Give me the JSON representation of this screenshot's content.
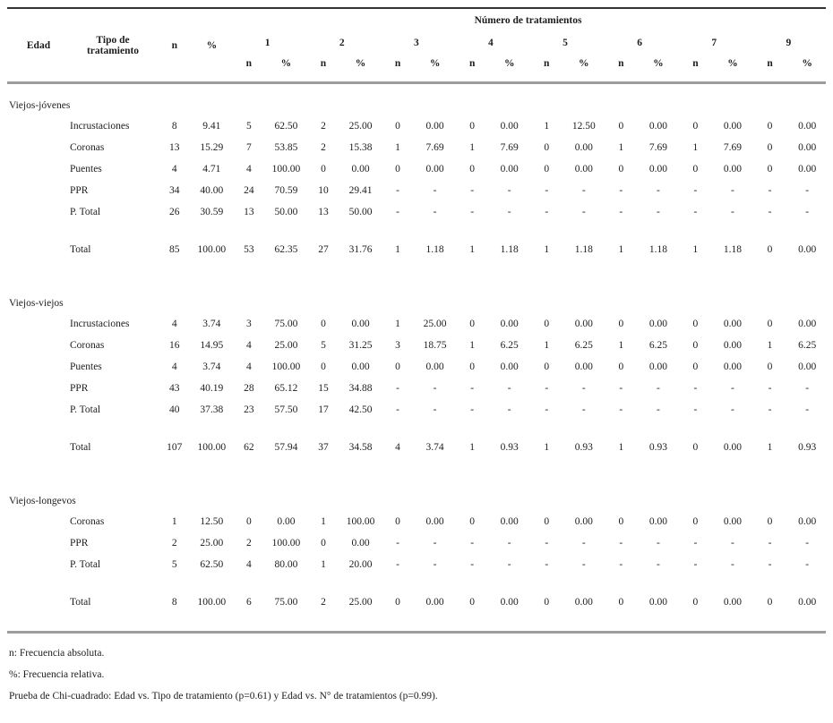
{
  "table": {
    "headers": {
      "edad": "Edad",
      "tipo": "Tipo de tratamiento",
      "n": "n",
      "pct": "%",
      "group": "Número de tratamientos"
    },
    "number_columns": [
      "1",
      "2",
      "3",
      "4",
      "5",
      "6",
      "7",
      "9"
    ],
    "sub_n": "n",
    "sub_pct": "%",
    "sections": [
      {
        "label": "Viejos-jóvenes",
        "rows": [
          {
            "label": "Incrustaciones",
            "values": [
              "8",
              "9.41",
              "5",
              "62.50",
              "2",
              "25.00",
              "0",
              "0.00",
              "0",
              "0.00",
              "1",
              "12.50",
              "0",
              "0.00",
              "0",
              "0.00",
              "0",
              "0.00"
            ]
          },
          {
            "label": "Coronas",
            "values": [
              "13",
              "15.29",
              "7",
              "53.85",
              "2",
              "15.38",
              "1",
              "7.69",
              "1",
              "7.69",
              "0",
              "0.00",
              "1",
              "7.69",
              "1",
              "7.69",
              "0",
              "0.00"
            ]
          },
          {
            "label": "Puentes",
            "values": [
              "4",
              "4.71",
              "4",
              "100.00",
              "0",
              "0.00",
              "0",
              "0.00",
              "0",
              "0.00",
              "0",
              "0.00",
              "0",
              "0.00",
              "0",
              "0.00",
              "0",
              "0.00"
            ]
          },
          {
            "label": "PPR",
            "values": [
              "34",
              "40.00",
              "24",
              "70.59",
              "10",
              "29.41",
              "-",
              "-",
              "-",
              "-",
              "-",
              "-",
              "-",
              "-",
              "-",
              "-",
              "-",
              "-"
            ]
          },
          {
            "label": "P. Total",
            "values": [
              "26",
              "30.59",
              "13",
              "50.00",
              "13",
              "50.00",
              "-",
              "-",
              "-",
              "-",
              "-",
              "-",
              "-",
              "-",
              "-",
              "-",
              "-",
              "-"
            ]
          }
        ],
        "total": {
          "label": "Total",
          "values": [
            "85",
            "100.00",
            "53",
            "62.35",
            "27",
            "31.76",
            "1",
            "1.18",
            "1",
            "1.18",
            "1",
            "1.18",
            "1",
            "1.18",
            "1",
            "1.18",
            "0",
            "0.00"
          ]
        }
      },
      {
        "label": "Viejos-viejos",
        "rows": [
          {
            "label": "Incrustaciones",
            "values": [
              "4",
              "3.74",
              "3",
              "75.00",
              "0",
              "0.00",
              "1",
              "25.00",
              "0",
              "0.00",
              "0",
              "0.00",
              "0",
              "0.00",
              "0",
              "0.00",
              "0",
              "0.00"
            ]
          },
          {
            "label": "Coronas",
            "values": [
              "16",
              "14.95",
              "4",
              "25.00",
              "5",
              "31.25",
              "3",
              "18.75",
              "1",
              "6.25",
              "1",
              "6.25",
              "1",
              "6.25",
              "0",
              "0.00",
              "1",
              "6.25"
            ]
          },
          {
            "label": "Puentes",
            "values": [
              "4",
              "3.74",
              "4",
              "100.00",
              "0",
              "0.00",
              "0",
              "0.00",
              "0",
              "0.00",
              "0",
              "0.00",
              "0",
              "0.00",
              "0",
              "0.00",
              "0",
              "0.00"
            ]
          },
          {
            "label": "PPR",
            "values": [
              "43",
              "40.19",
              "28",
              "65.12",
              "15",
              "34.88",
              "-",
              "-",
              "-",
              "-",
              "-",
              "-",
              "-",
              "-",
              "-",
              "-",
              "-",
              "-"
            ]
          },
          {
            "label": "P. Total",
            "values": [
              "40",
              "37.38",
              "23",
              "57.50",
              "17",
              "42.50",
              "-",
              "-",
              "-",
              "-",
              "-",
              "-",
              "-",
              "-",
              "-",
              "-",
              "-",
              "-"
            ]
          }
        ],
        "total": {
          "label": "Total",
          "values": [
            "107",
            "100.00",
            "62",
            "57.94",
            "37",
            "34.58",
            "4",
            "3.74",
            "1",
            "0.93",
            "1",
            "0.93",
            "1",
            "0.93",
            "0",
            "0.00",
            "1",
            "0.93"
          ]
        }
      },
      {
        "label": "Viejos-longevos",
        "rows": [
          {
            "label": "Coronas",
            "values": [
              "1",
              "12.50",
              "0",
              "0.00",
              "1",
              "100.00",
              "0",
              "0.00",
              "0",
              "0.00",
              "0",
              "0.00",
              "0",
              "0.00",
              "0",
              "0.00",
              "0",
              "0.00"
            ]
          },
          {
            "label": "PPR",
            "values": [
              "2",
              "25.00",
              "2",
              "100.00",
              "0",
              "0.00",
              "-",
              "-",
              "-",
              "-",
              "-",
              "-",
              "-",
              "-",
              "-",
              "-",
              "-",
              "-"
            ]
          },
          {
            "label": "P. Total",
            "values": [
              "5",
              "62.50",
              "4",
              "80.00",
              "1",
              "20.00",
              "-",
              "-",
              "-",
              "-",
              "-",
              "-",
              "-",
              "-",
              "-",
              "-",
              "-",
              "-"
            ]
          }
        ],
        "total": {
          "label": "Total",
          "values": [
            "8",
            "100.00",
            "6",
            "75.00",
            "2",
            "25.00",
            "0",
            "0.00",
            "0",
            "0.00",
            "0",
            "0.00",
            "0",
            "0.00",
            "0",
            "0.00",
            "0",
            "0.00"
          ]
        }
      }
    ]
  },
  "notes": [
    "n: Frecuencia absoluta.",
    "%: Frecuencia relativa.",
    "Prueba de Chi-cuadrado: Edad vs. Tipo de tratamiento (p=0.61) y Edad vs. N° de tratamientos (p=0.99)."
  ]
}
